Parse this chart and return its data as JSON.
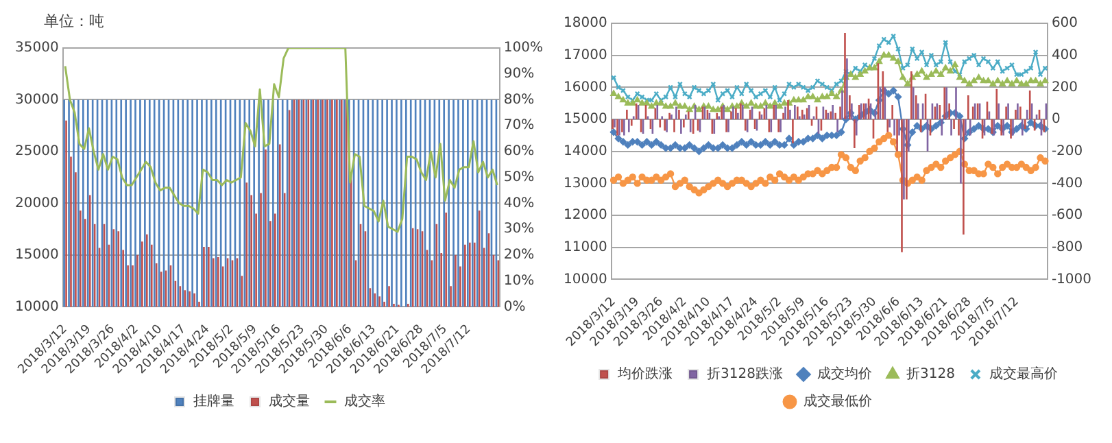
{
  "chart_data": [
    {
      "type": "bar",
      "ylabel": "单位：吨",
      "categories": [
        "2018/3/12",
        null,
        null,
        null,
        null,
        "2018/3/19",
        null,
        null,
        null,
        null,
        "2018/3/26",
        null,
        null,
        null,
        null,
        "2018/4/2",
        null,
        null,
        null,
        null,
        "2018/4/10",
        null,
        null,
        null,
        null,
        "2018/4/17",
        null,
        null,
        null,
        null,
        "2018/4/24",
        null,
        null,
        null,
        null,
        "2018/5/2",
        null,
        null,
        null,
        null,
        "2018/5/9",
        null,
        null,
        null,
        null,
        "2018/5/16",
        null,
        null,
        null,
        null,
        "2018/5/23",
        null,
        null,
        null,
        null,
        "2018/5/30",
        null,
        null,
        null,
        null,
        "2018/6/6",
        null,
        null,
        null,
        null,
        "2018/6/13",
        null,
        null,
        null,
        null,
        "2018/6/21",
        null,
        null,
        null,
        null,
        "2018/6/28",
        null,
        null,
        null,
        null,
        "2018/7/5",
        null,
        null,
        null,
        null,
        "2018/7/12",
        null,
        null,
        null,
        null,
        null,
        null
      ],
      "series": [
        {
          "name": "挂牌量",
          "color": "#4f81bd",
          "values": [
            30000,
            30000,
            30000,
            30000,
            30000,
            30000,
            30000,
            30000,
            30000,
            30000,
            30000,
            30000,
            30000,
            30000,
            30000,
            30000,
            30000,
            30000,
            30000,
            30000,
            30000,
            30000,
            30000,
            30000,
            30000,
            30000,
            30000,
            30000,
            30000,
            30000,
            30000,
            30000,
            30000,
            30000,
            30000,
            30000,
            30000,
            30000,
            30000,
            30000,
            30000,
            30000,
            30000,
            30000,
            30000,
            30000,
            30000,
            30000,
            30000,
            30000,
            30000,
            30000,
            30000,
            30000,
            30000,
            30000,
            30000,
            30000,
            30000,
            30000,
            30000,
            30000,
            30000,
            30000,
            30000,
            30000,
            30000,
            30000,
            30000,
            30000,
            30000,
            30000,
            30000,
            30000,
            30000,
            30000,
            30000,
            30000,
            30000,
            30000,
            30000,
            30000,
            30000,
            30000,
            30000,
            30000,
            30000,
            30000,
            30000,
            30000,
            30000,
            30000
          ]
        },
        {
          "name": "成交量",
          "color": "#c0504d",
          "values": [
            28000,
            24500,
            23000,
            19300,
            18500,
            20800,
            18000,
            15700,
            18000,
            16000,
            17500,
            17300,
            15500,
            14000,
            14000,
            15000,
            16300,
            17000,
            16000,
            14200,
            13400,
            13500,
            14000,
            12500,
            12000,
            11600,
            11500,
            11300,
            10500,
            15800,
            15800,
            14700,
            14800,
            13900,
            14700,
            14500,
            14700,
            13000,
            22000,
            20800,
            19000,
            21000,
            25200,
            18300,
            19000,
            25700,
            21000,
            29000,
            30000,
            30000,
            30000,
            30000,
            30000,
            30000,
            30000,
            30000,
            30000,
            30000,
            30000,
            30000,
            23000,
            14500,
            18000,
            17300,
            11800,
            11300,
            11000,
            10500,
            12000,
            10300,
            10200,
            null,
            10300,
            17600,
            17500,
            17300,
            15500,
            14500,
            18000,
            15200,
            19100,
            12000,
            15000,
            13900,
            16000,
            16200,
            16200,
            19300,
            15700,
            17100,
            15000,
            14500
          ]
        },
        {
          "name": "成交率",
          "type": "line",
          "axis": "y2",
          "color": "#9bbb59",
          "values": [
            93,
            80,
            75,
            63,
            61,
            69,
            60,
            53,
            59,
            53,
            58,
            57,
            50,
            47,
            47,
            50,
            53,
            56,
            54,
            48,
            45,
            46,
            46,
            43,
            40,
            39,
            39,
            38,
            36,
            53,
            52,
            49,
            49,
            47,
            49,
            48,
            49,
            50,
            71,
            68,
            62,
            84,
            62,
            63,
            86,
            81,
            96,
            100,
            100,
            100,
            100,
            100,
            100,
            100,
            100,
            100,
            100,
            100,
            100,
            100,
            48,
            59,
            58,
            39,
            38,
            37,
            33,
            41,
            31,
            30,
            29,
            34,
            58,
            58,
            57,
            52,
            49,
            60,
            50,
            63,
            41,
            49,
            46,
            53,
            54,
            54,
            64,
            52,
            56,
            50,
            53,
            47
          ]
        }
      ],
      "ylim": [
        10000,
        35000
      ],
      "yticks": [
        10000,
        15000,
        20000,
        25000,
        30000,
        35000
      ],
      "y2lim": [
        0,
        100
      ],
      "y2ticks": [
        {
          "value": 0,
          "label": "0%"
        },
        {
          "value": 10,
          "label": "10%"
        },
        {
          "value": 20,
          "label": "20%"
        },
        {
          "value": 30,
          "label": "30%"
        },
        {
          "value": 40,
          "label": "40%"
        },
        {
          "value": 50,
          "label": "50%"
        },
        {
          "value": 60,
          "label": "60%"
        },
        {
          "value": 70,
          "label": "70%"
        },
        {
          "value": 80,
          "label": "80%"
        },
        {
          "value": 90,
          "label": "90%"
        },
        {
          "value": 100,
          "label": "100%"
        }
      ],
      "grid": "y",
      "legend": "bottom"
    },
    {
      "type": "line",
      "categories": [
        "2018/3/12",
        null,
        null,
        null,
        null,
        "2018/3/19",
        null,
        null,
        null,
        null,
        "2018/3/26",
        null,
        null,
        null,
        null,
        "2018/4/2",
        null,
        null,
        null,
        null,
        "2018/4/10",
        null,
        null,
        null,
        null,
        "2018/4/17",
        null,
        null,
        null,
        null,
        "2018/4/24",
        null,
        null,
        null,
        null,
        "2018/5/2",
        null,
        null,
        null,
        null,
        "2018/5/9",
        null,
        null,
        null,
        null,
        "2018/5/16",
        null,
        null,
        null,
        null,
        "2018/5/23",
        null,
        null,
        null,
        null,
        "2018/5/30",
        null,
        null,
        null,
        null,
        "2018/6/6",
        null,
        null,
        null,
        null,
        "2018/6/13",
        null,
        null,
        null,
        null,
        "2018/6/21",
        null,
        null,
        null,
        null,
        "2018/6/28",
        null,
        null,
        null,
        null,
        "2018/7/5",
        null,
        null,
        null,
        null,
        "2018/7/12",
        null,
        null,
        null,
        null,
        null,
        null
      ],
      "series": [
        {
          "name": "均价跌涨",
          "type": "bar",
          "axis": "y2",
          "color": "#c0504d",
          "values": [
            -60,
            -100,
            -80,
            60,
            -40,
            100,
            -80,
            90,
            -60,
            70,
            -50,
            -70,
            40,
            -80,
            60,
            -50,
            50,
            -90,
            -70,
            80,
            60,
            -90,
            40,
            80,
            -80,
            50,
            70,
            100,
            -70,
            60,
            -60,
            50,
            70,
            -80,
            90,
            -80,
            40,
            120,
            -150,
            80,
            60,
            70,
            -40,
            80,
            -70,
            60,
            50,
            40,
            80,
            540,
            150,
            -180,
            90,
            100,
            130,
            -120,
            350,
            300,
            -80,
            90,
            -200,
            -830,
            -500,
            300,
            150,
            -80,
            160,
            -100,
            80,
            90,
            200,
            100,
            -60,
            -100,
            -720,
            150,
            80,
            100,
            -120,
            110,
            -90,
            190,
            -100,
            80,
            -120,
            60,
            80,
            -60,
            180,
            -70,
            60,
            -80
          ]
        },
        {
          "name": "折3128跌涨",
          "type": "bar",
          "axis": "y2",
          "color": "#8064a2",
          "values": [
            -50,
            -100,
            -100,
            -80,
            20,
            90,
            -90,
            20,
            -90,
            90,
            20,
            -80,
            30,
            80,
            -90,
            30,
            -80,
            90,
            -80,
            80,
            40,
            -90,
            20,
            90,
            -80,
            80,
            40,
            90,
            -80,
            80,
            -70,
            30,
            90,
            -80,
            90,
            -80,
            80,
            60,
            90,
            20,
            30,
            90,
            20,
            -90,
            80,
            40,
            90,
            -80,
            180,
            380,
            100,
            -100,
            100,
            100,
            100,
            60,
            200,
            200,
            -50,
            -100,
            -100,
            -500,
            -200,
            200,
            100,
            100,
            -200,
            100,
            100,
            -100,
            200,
            -100,
            200,
            -400,
            -100,
            -100,
            100,
            100,
            -100,
            50,
            -100,
            100,
            -100,
            100,
            -100,
            100,
            -100,
            60,
            100,
            30,
            -100,
            100
          ]
        },
        {
          "name": "成交均价",
          "marker": "diamond",
          "color": "#4f81bd",
          "values": [
            14600,
            14400,
            14300,
            14200,
            14300,
            14300,
            14200,
            14300,
            14200,
            14300,
            14200,
            14100,
            14100,
            14200,
            14100,
            14100,
            14200,
            14100,
            14000,
            14100,
            14200,
            14100,
            14100,
            14200,
            14100,
            14100,
            14200,
            14300,
            14200,
            14300,
            14200,
            14200,
            14300,
            14200,
            14300,
            14200,
            14200,
            14400,
            14200,
            14300,
            14300,
            14400,
            14400,
            14500,
            14400,
            14500,
            14500,
            14500,
            14600,
            15000,
            15200,
            15000,
            15100,
            15200,
            15300,
            15200,
            15600,
            15900,
            15800,
            15900,
            15700,
            14700,
            14200,
            14600,
            14800,
            14700,
            14800,
            14700,
            14800,
            14900,
            15100,
            15200,
            15200,
            15100,
            14400,
            14600,
            14700,
            14800,
            14700,
            14700,
            14600,
            14800,
            14700,
            14800,
            14600,
            14700,
            14800,
            14700,
            14900,
            14800,
            14800,
            14700
          ]
        },
        {
          "name": "折3128",
          "marker": "triangle",
          "color": "#9bbb59",
          "values": [
            15800,
            15700,
            15600,
            15500,
            15500,
            15600,
            15500,
            15500,
            15400,
            15500,
            15500,
            15400,
            15400,
            15500,
            15400,
            15400,
            15300,
            15400,
            15300,
            15400,
            15400,
            15300,
            15300,
            15400,
            15300,
            15400,
            15400,
            15500,
            15400,
            15500,
            15400,
            15400,
            15500,
            15400,
            15500,
            15400,
            15500,
            15500,
            15600,
            15600,
            15600,
            15700,
            15700,
            15600,
            15700,
            15700,
            15800,
            15700,
            15900,
            16300,
            16400,
            16300,
            16400,
            16500,
            16600,
            16600,
            16800,
            17000,
            17000,
            16900,
            16800,
            16300,
            16100,
            16300,
            16400,
            16500,
            16300,
            16400,
            16500,
            16400,
            16600,
            16500,
            16700,
            16300,
            16200,
            16100,
            16200,
            16300,
            16200,
            16200,
            16100,
            16200,
            16100,
            16200,
            16100,
            16200,
            16100,
            16100,
            16200,
            16200,
            16100,
            16200
          ]
        },
        {
          "name": "成交最高价",
          "marker": "cross",
          "color": "#4bacc6",
          "values": [
            16300,
            16000,
            15900,
            15700,
            15600,
            15800,
            15700,
            15600,
            15600,
            15800,
            15600,
            15700,
            16000,
            15700,
            16100,
            15800,
            15700,
            16000,
            15900,
            15800,
            15900,
            16100,
            15600,
            15800,
            15900,
            15700,
            16000,
            15800,
            16100,
            15900,
            15700,
            15800,
            15900,
            15700,
            16000,
            15600,
            15800,
            16100,
            16000,
            16100,
            16000,
            15900,
            16000,
            16200,
            16100,
            16000,
            15900,
            16100,
            16200,
            16500,
            16400,
            16600,
            16500,
            16700,
            16600,
            16900,
            17300,
            17500,
            17400,
            17600,
            17200,
            16600,
            16700,
            17200,
            16900,
            17100,
            16700,
            17000,
            16700,
            16800,
            17400,
            16800,
            16500,
            16400,
            16800,
            16900,
            17000,
            16700,
            16900,
            16800,
            16600,
            16800,
            16500,
            16600,
            16700,
            16400,
            16400,
            16500,
            16600,
            17100,
            16400,
            16600
          ]
        },
        {
          "name": "成交最低价",
          "marker": "circle",
          "color": "#f79646",
          "values": [
            13100,
            13200,
            13000,
            13100,
            13200,
            13000,
            13200,
            13100,
            13100,
            13200,
            13100,
            13200,
            13300,
            12900,
            13000,
            13100,
            12900,
            12800,
            12700,
            12800,
            12900,
            13000,
            13100,
            13000,
            12900,
            13000,
            13100,
            13100,
            13000,
            12900,
            13000,
            13100,
            13000,
            13200,
            13100,
            13300,
            13200,
            13100,
            13200,
            13100,
            13200,
            13300,
            13300,
            13400,
            13300,
            13400,
            13500,
            13500,
            13900,
            13800,
            13500,
            13400,
            13700,
            13800,
            14000,
            14100,
            14300,
            14400,
            14500,
            14300,
            13900,
            13100,
            13000,
            13100,
            13200,
            13100,
            13400,
            13500,
            13600,
            13500,
            13700,
            13800,
            13900,
            14000,
            13600,
            13400,
            13400,
            13300,
            13300,
            13600,
            13500,
            13300,
            13500,
            13600,
            13500,
            13500,
            13600,
            13500,
            13400,
            13500,
            13800,
            13700
          ]
        }
      ],
      "ylim": [
        10000,
        18000
      ],
      "yticks": [
        10000,
        11000,
        12000,
        13000,
        14000,
        15000,
        16000,
        17000,
        18000
      ],
      "y2lim": [
        -1000,
        600
      ],
      "y2ticks": [
        -1000,
        -800,
        -600,
        -400,
        -200,
        0,
        200,
        400,
        600
      ],
      "grid": "y",
      "legend": "bottom"
    }
  ]
}
